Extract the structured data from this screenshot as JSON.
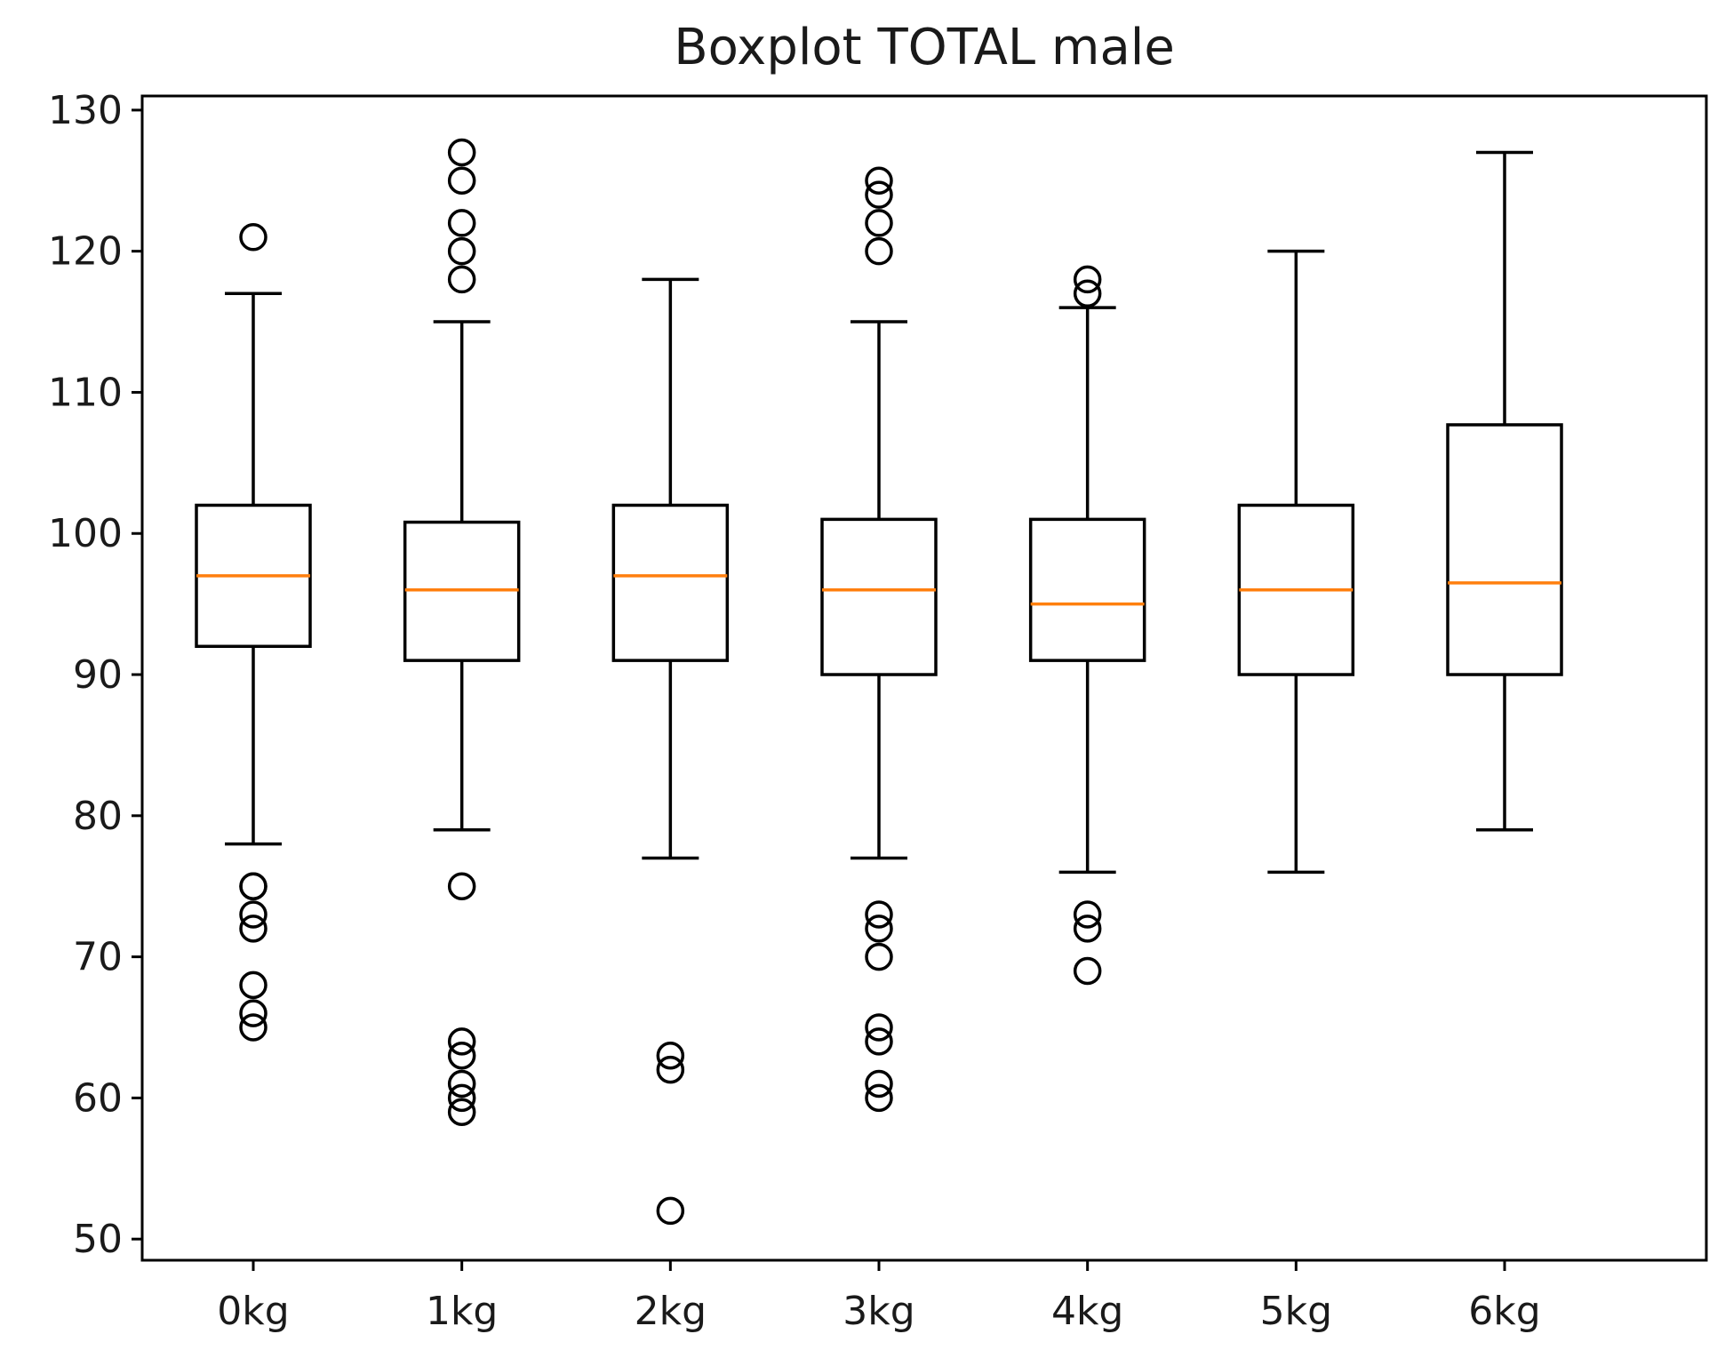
{
  "chart_data": {
    "type": "boxplot",
    "title": "Boxplot TOTAL male",
    "xlabel": "",
    "ylabel": "",
    "ylim": [
      48.5,
      131
    ],
    "yticks": [
      50,
      60,
      70,
      80,
      90,
      100,
      110,
      120,
      130
    ],
    "ytick_labels": [
      "50",
      "60",
      "70",
      "80",
      "90",
      "100",
      "110",
      "120",
      "130"
    ],
    "categories": [
      "0kg",
      "1kg",
      "2kg",
      "3kg",
      "4kg",
      "5kg",
      "6kg"
    ],
    "colors": {
      "box": "#000000",
      "median": "#ff7f0e",
      "flier": "#000000"
    },
    "boxes": [
      {
        "label": "0kg",
        "whisker_low": 78,
        "q1": 92,
        "median": 97,
        "q3": 102,
        "whisker_high": 117,
        "fliers": [
          121,
          75,
          75,
          73,
          72,
          68,
          66,
          65
        ]
      },
      {
        "label": "1kg",
        "whisker_low": 79,
        "q1": 91,
        "median": 96,
        "q3": 100.8,
        "whisker_high": 115,
        "fliers": [
          127,
          125,
          122,
          120,
          118,
          75,
          64,
          63,
          61,
          60,
          59
        ]
      },
      {
        "label": "2kg",
        "whisker_low": 77,
        "q1": 91,
        "median": 97,
        "q3": 102,
        "whisker_high": 118,
        "fliers": [
          63,
          62,
          52
        ]
      },
      {
        "label": "3kg",
        "whisker_low": 77,
        "q1": 90,
        "median": 96,
        "q3": 101,
        "whisker_high": 115,
        "fliers": [
          125,
          124,
          122,
          120,
          73,
          72,
          70,
          65,
          64,
          61,
          60
        ]
      },
      {
        "label": "4kg",
        "whisker_low": 76,
        "q1": 91,
        "median": 95,
        "q3": 101,
        "whisker_high": 116,
        "fliers": [
          118,
          117,
          73,
          72,
          69
        ]
      },
      {
        "label": "5kg",
        "whisker_low": 76,
        "q1": 90,
        "median": 96,
        "q3": 102,
        "whisker_high": 120,
        "fliers": []
      },
      {
        "label": "6kg",
        "whisker_low": 79,
        "q1": 90,
        "median": 96.5,
        "q3": 107.7,
        "whisker_high": 127,
        "fliers": []
      }
    ]
  }
}
